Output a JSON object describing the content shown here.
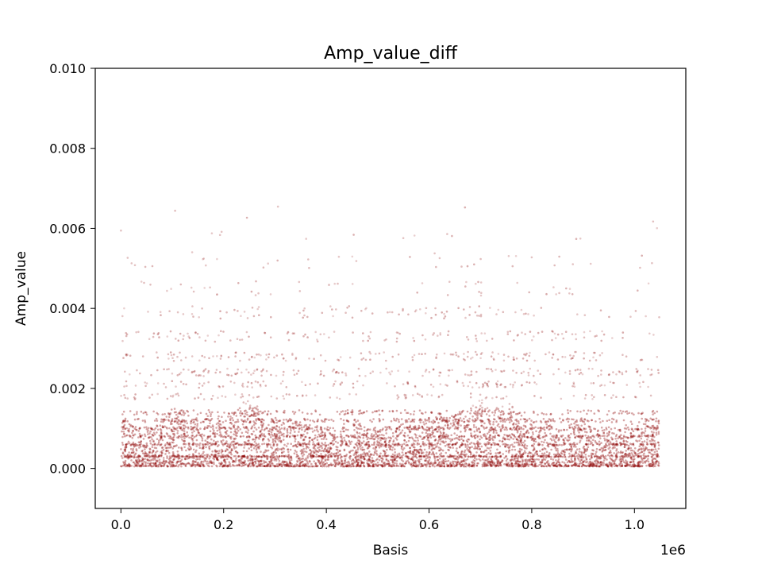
{
  "chart_data": {
    "type": "scatter",
    "title": "Amp_value_diff",
    "xlabel": "Basis",
    "ylabel": "Amp_value",
    "x_offset_label": "1e6",
    "xlim": [
      -0.05,
      1.1
    ],
    "ylim": [
      -0.001,
      0.01
    ],
    "x_ticks": [
      0.0,
      0.2,
      0.4,
      0.6,
      0.8,
      1.0
    ],
    "x_tick_labels": [
      "0.0",
      "0.2",
      "0.4",
      "0.6",
      "0.8",
      "1.0"
    ],
    "y_ticks": [
      0.0,
      0.002,
      0.004,
      0.006,
      0.008,
      0.01
    ],
    "y_tick_labels": [
      "0.000",
      "0.002",
      "0.004",
      "0.006",
      "0.008",
      "0.010"
    ],
    "grid": false,
    "legend": "none",
    "marker_color": "#8b0000",
    "x_range_of_points": [
      0.0,
      1.048576
    ],
    "value_levels": [
      0.0003,
      0.0006,
      0.0008,
      0.001,
      0.0012,
      0.0014,
      0.0018,
      0.0021,
      0.0024,
      0.0028,
      0.0033,
      0.0039,
      0.0045,
      0.0052,
      0.0059,
      0.0064
    ],
    "level_density": [
      1.0,
      0.95,
      0.8,
      0.85,
      0.75,
      0.65,
      0.4,
      0.45,
      0.55,
      0.6,
      0.5,
      0.35,
      0.2,
      0.12,
      0.06,
      0.03
    ],
    "peak_basis": [
      0.0,
      0.11,
      0.25,
      0.45,
      0.7,
      0.75,
      0.9
    ],
    "max_value_observed": 0.0067
  }
}
